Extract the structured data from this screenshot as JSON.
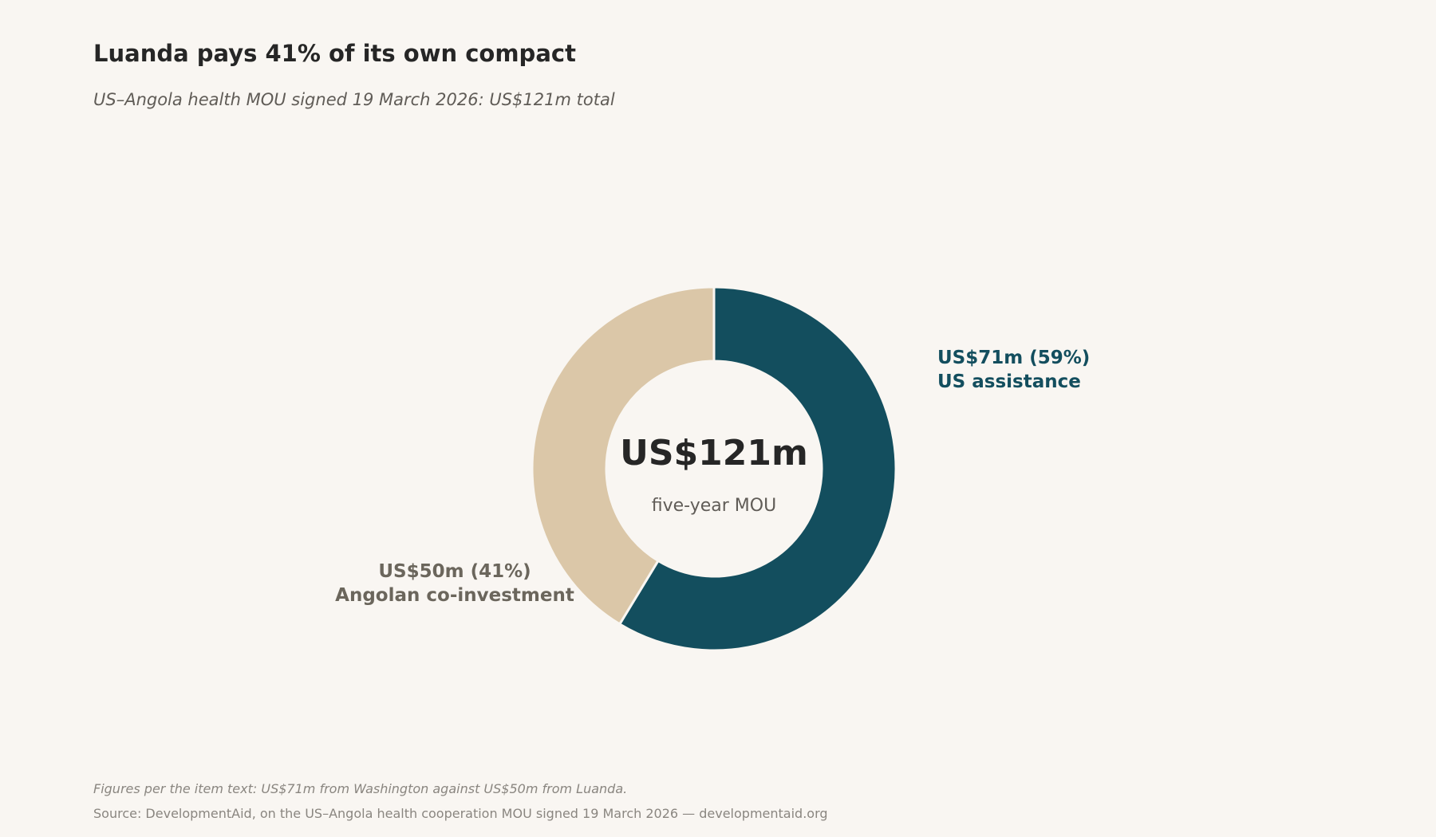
{
  "header": {
    "title": "Luanda pays 41% of its own compact",
    "subtitle": "US–Angola health MOU signed 19 March 2026: US$121m total"
  },
  "chart_data": {
    "type": "pie",
    "variant": "donut",
    "title": "Luanda pays 41% of its own compact",
    "subtitle": "US–Angola health MOU signed 19 March 2026: US$121m total",
    "total": 121,
    "unit": "US$m",
    "center_label": "US$121m",
    "center_sublabel": "five-year MOU",
    "slices": [
      {
        "value": 71,
        "percent": 59,
        "label_value": "US$71m (59%)",
        "label_name": "US assistance",
        "color": "#134e5e",
        "label_color": "#134e5e"
      },
      {
        "value": 50,
        "percent": 41,
        "label_value": "US$50m (41%)",
        "label_name": "Angolan co-investment",
        "color": "#dbc7a8",
        "label_color": "#6b665c"
      }
    ],
    "start": "top",
    "direction": "clockwise",
    "legend": "none"
  },
  "footer": {
    "note": "Figures per the item text: US$71m from Washington against US$50m from Luanda.",
    "source": "Source: DevelopmentAid, on the US–Angola health cooperation MOU signed 19 March 2026 — developmentaid.org"
  }
}
